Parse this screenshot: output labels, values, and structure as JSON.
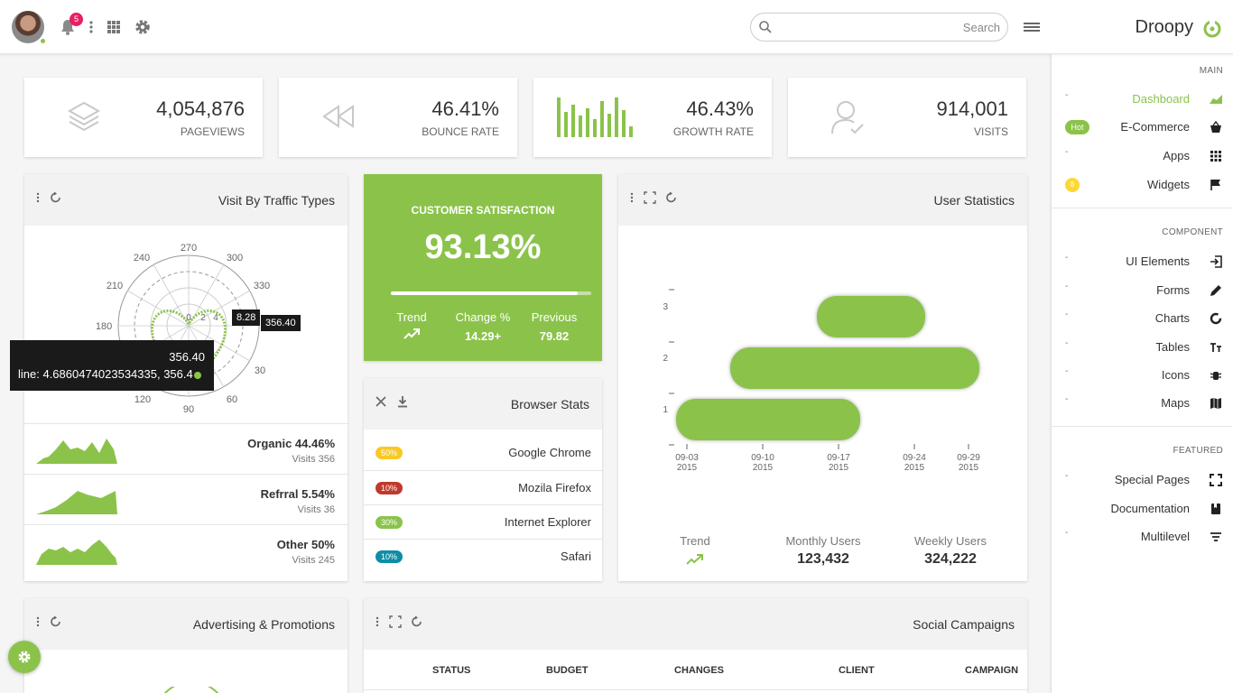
{
  "topbar": {
    "notifications_count": "5",
    "search_placeholder": "Search",
    "brand": "Droopy"
  },
  "stats": [
    {
      "value": "4,054,876",
      "label": "PAGEVIEWS",
      "icon": "layers-icon"
    },
    {
      "value": "46.41%",
      "label": "BOUNCE RATE",
      "icon": "rewind-icon"
    },
    {
      "value": "46.43%",
      "label": "GROWTH RATE",
      "icon": "bar-sparkline-icon"
    },
    {
      "value": "914,001",
      "label": "VISITS",
      "icon": "user-check-icon"
    }
  ],
  "traffic": {
    "title": "Visit By Traffic Types",
    "polar_angle_labels": [
      "270",
      "300",
      "330",
      "240",
      "210",
      "180",
      "30",
      "120",
      "90",
      "60"
    ],
    "radial_labels": [
      "0",
      "2",
      "4"
    ],
    "tooltip_small_1": "8.28",
    "tooltip_small_2": "356.40",
    "tooltip_title": "356.40",
    "tooltip_line": "line: 4.6860474023534335, 356.4",
    "rows": [
      {
        "name": "Organic 44.46%",
        "visits": "Visits 356"
      },
      {
        "name": "Refrral 5.54%",
        "visits": "Visits 36"
      },
      {
        "name": "Other 50%",
        "visits": "Visits 245"
      }
    ]
  },
  "satisfaction": {
    "title": "CUSTOMER SATISFACTION",
    "value": "93.13%",
    "progress": 0.9313,
    "trend_label": "Trend",
    "change_label": "Change %",
    "change_value": "14.29+",
    "previous_label": "Previous",
    "previous_value": "79.82"
  },
  "browser": {
    "title": "Browser Stats",
    "rows": [
      {
        "badge": "50%",
        "name": "Google Chrome",
        "color": "#f9c922"
      },
      {
        "badge": "10%",
        "name": "Mozila Firefox",
        "color": "#c0392b"
      },
      {
        "badge": "30%",
        "name": "Internet Explorer",
        "color": "#8bc34a"
      },
      {
        "badge": "10%",
        "name": "Safari",
        "color": "#0d8ea6"
      }
    ]
  },
  "user_stats": {
    "title": "User Statistics",
    "y_labels": [
      "3",
      "2",
      "1"
    ],
    "x_labels": [
      {
        "date": "09-03",
        "year": "2015"
      },
      {
        "date": "09-10",
        "year": "2015"
      },
      {
        "date": "09-17",
        "year": "2015"
      },
      {
        "date": "09-24",
        "year": "2015"
      },
      {
        "date": "09-29",
        "year": "2015"
      }
    ],
    "trend_label": "Trend",
    "monthly_label": "Monthly Users",
    "monthly_value": "123,432",
    "weekly_label": "Weekly Users",
    "weekly_value": "324,222"
  },
  "chart_data": {
    "type": "bar",
    "orientation": "horizontal-range",
    "categories": [
      "1",
      "2",
      "3"
    ],
    "series": [
      {
        "values": [
          [
            "2015-09-02",
            "2015-09-19"
          ],
          [
            "2015-09-07",
            "2015-09-30"
          ],
          [
            "2015-09-15",
            "2015-09-25"
          ]
        ]
      }
    ],
    "xlim": [
      "2015-09-02",
      "2015-09-30"
    ]
  },
  "advertising": {
    "title": "Advertising & Promotions"
  },
  "social": {
    "title": "Social Campaigns",
    "columns": [
      "STATUS",
      "BUDGET",
      "CHANGES",
      "CLIENT",
      "CAMPAIGN"
    ]
  },
  "sidebar": {
    "main_header": "MAIN",
    "component_header": "COMPONENT",
    "featured_header": "FEATURED",
    "main_items": [
      {
        "label": "Dashboard",
        "icon": "chart-area-icon",
        "active": true
      },
      {
        "label": "E-Commerce",
        "icon": "basket-icon",
        "badge": "Hot"
      },
      {
        "label": "Apps",
        "icon": "grid-icon"
      },
      {
        "label": "Widgets",
        "icon": "flag-icon",
        "badge": "8"
      }
    ],
    "component_items": [
      {
        "label": "UI Elements",
        "icon": "login-icon"
      },
      {
        "label": "Forms",
        "icon": "pencil-icon"
      },
      {
        "label": "Charts",
        "icon": "donut-icon"
      },
      {
        "label": "Tables",
        "icon": "text-size-icon"
      },
      {
        "label": "Icons",
        "icon": "bug-icon"
      },
      {
        "label": "Maps",
        "icon": "map-icon"
      }
    ],
    "featured_items": [
      {
        "label": "Special Pages",
        "icon": "expand-icon"
      },
      {
        "label": "Documentation",
        "icon": "book-icon"
      },
      {
        "label": "Multilevel",
        "icon": "filter-icon"
      }
    ]
  },
  "colors": {
    "accent": "#8bc34a",
    "badge_pink": "#e91e63"
  }
}
